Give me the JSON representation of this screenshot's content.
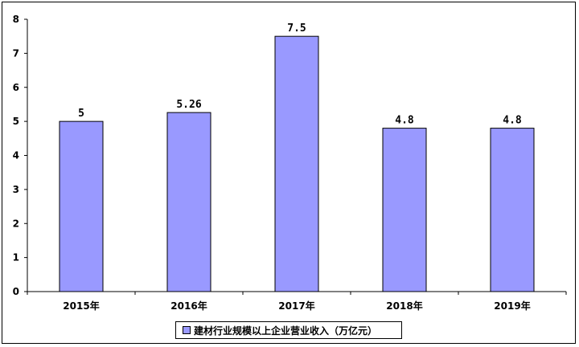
{
  "chart_data": {
    "type": "bar",
    "categories": [
      "2015年",
      "2016年",
      "2017年",
      "2018年",
      "2019年"
    ],
    "series": [
      {
        "name": "建材行业规模以上企业营业收入（万亿元）",
        "values": [
          5,
          5.26,
          7.5,
          4.8,
          4.8
        ]
      }
    ],
    "data_labels": [
      "5",
      "5.26",
      "7.5",
      "4.8",
      "4.8"
    ],
    "yticks": [
      "0",
      "1",
      "2",
      "3",
      "4",
      "5",
      "6",
      "7",
      "8"
    ],
    "ylim": [
      0,
      8
    ],
    "grid": false,
    "legend_position": "bottom",
    "colors": {
      "bar_fill": "#9999ff",
      "bar_stroke": "#000000",
      "axis": "#000000"
    }
  }
}
